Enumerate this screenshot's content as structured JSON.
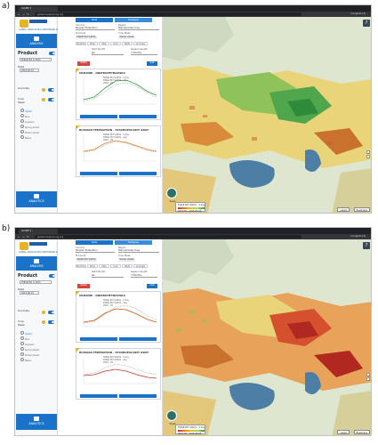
{
  "panels": [
    {
      "label": "a)",
      "browser": {
        "tab_title": "GLOBE S",
        "url": "globecropplanning.org",
        "user": "Incognito (3)"
      },
      "logo_text": "GLOBAL AGRICULTURAL MONITORING SYSTEM",
      "sidebar": {
        "analysis_btn": "ANALYSIS",
        "product_title": "Product",
        "product_value": "FAPAR Ptd % 60YA",
        "date_label": "Date",
        "date_value": "2016-05-01",
        "anomaly_label": "Anomaly",
        "crop_mask_label": "Crop Mask",
        "crop_options": [
          "Global",
          "Rice",
          "Soybean",
          "Spring wheat",
          "Winter wheat",
          "Maize"
        ],
        "analytics_btn": "ANALYTICS",
        "language": "English"
      },
      "control": {
        "tab1": "Adds",
        "tab2": "Subtypes",
        "country_label": "Country",
        "country_value": "Russian Federation",
        "region_label": "Region",
        "region_value": "Stavropolskiy Kray",
        "products_label": "Products",
        "products_value": "FAPAR Ptd %60YA",
        "crop_label": "Crop Mask",
        "crop_value": "Winter wheat",
        "segments": [
          "Monthly",
          "Plots",
          "Map",
          "Cum",
          "Stats",
          "Anomaly"
        ],
        "start_label": "Start Month",
        "start_value": "Jan",
        "end_label": "Season length",
        "end_value": "7 Months",
        "delete_btn": "Delete",
        "add_btn": "Add"
      },
      "charts": [
        {
          "title": "UKRAINE - DNIPROPETROVSKA",
          "legend": [
            "FAPAR Ptd %60YA - 5-day",
            "FAPAR Ptd %60YA - Avg",
            "2016 - 20"
          ]
        },
        {
          "title": "RUSSIAN FEDERATION - STAVROPOLSKIY KRAY",
          "legend": [
            "FAPAR Ptd %60YA - 5-day",
            "FAPAR Ptd %60YA - Avg",
            "2016 - 20"
          ]
        }
      ],
      "map": {
        "help": "?",
        "compass_label": "Reset",
        "legend_title": "FAPAR Ptd %60YA - 5-day",
        "legend_sub": "2016-05 - 2016-05-05",
        "btn_left": "Labels",
        "btn_right": "Basemaps"
      }
    },
    {
      "label": "b)",
      "browser": {
        "tab_title": "GLOBE S",
        "url": "globecropplanning.org",
        "user": "Incognito (3)"
      },
      "logo_text": "GLOBAL AGRICULTURAL MONITORING SYSTEM",
      "sidebar": {
        "analysis_btn": "ANALYSIS",
        "product_title": "Product",
        "product_value": "FAPAR Ptd % 60YA",
        "date_label": "Date",
        "date_value": "2016-06-01",
        "anomaly_label": "Anomaly",
        "crop_mask_label": "Crop Mask",
        "crop_options": [
          "Global",
          "Rice",
          "Soybean",
          "Spring wheat",
          "Winter wheat",
          "Maize"
        ],
        "analytics_btn": "ANALYTICS",
        "language": "English"
      },
      "control": {
        "tab1": "Adds",
        "tab2": "Subtypes",
        "country_label": "Country",
        "country_value": "Russian Federation",
        "region_label": "Region",
        "region_value": "Stavropolskiy Kray",
        "products_label": "Products",
        "products_value": "FAPAR Ptd %60YA",
        "crop_label": "Crop Mask",
        "crop_value": "Winter wheat",
        "segments": [
          "Monthly",
          "Plots",
          "Map",
          "Cum",
          "Stats",
          "Anomaly"
        ],
        "start_label": "Start Month",
        "start_value": "Jan",
        "end_label": "Season length",
        "end_value": "7 Months",
        "delete_btn": "Delete",
        "add_btn": "Add"
      },
      "charts": [
        {
          "title": "UKRAINE - DNIPROPETROVSKA",
          "legend": [
            "FAPAR Ptd %60YA - 5-day",
            "FAPAR Ptd %60YA - Avg",
            "2016 - 20"
          ]
        },
        {
          "title": "RUSSIAN FEDERATION - STAVROPOLSKIY KRAY",
          "legend": [
            "FAPAR Ptd %60YA - 5-day",
            "FAPAR Ptd %60YA - Avg",
            "2016 - 20"
          ]
        }
      ],
      "map": {
        "help": "?",
        "compass_label": "Reset",
        "legend_title": "FAPAR Ptd %60YA - 5-day",
        "legend_sub": "2016-06 - 2016-06-05",
        "btn_left": "Labels",
        "btn_right": "Basemaps"
      }
    }
  ],
  "colors": {
    "accent": "#1a73c9",
    "danger": "#d9413b",
    "logo_gold": "#e6b422",
    "map_green": "#2e9e3e",
    "map_red": "#c0392b"
  }
}
